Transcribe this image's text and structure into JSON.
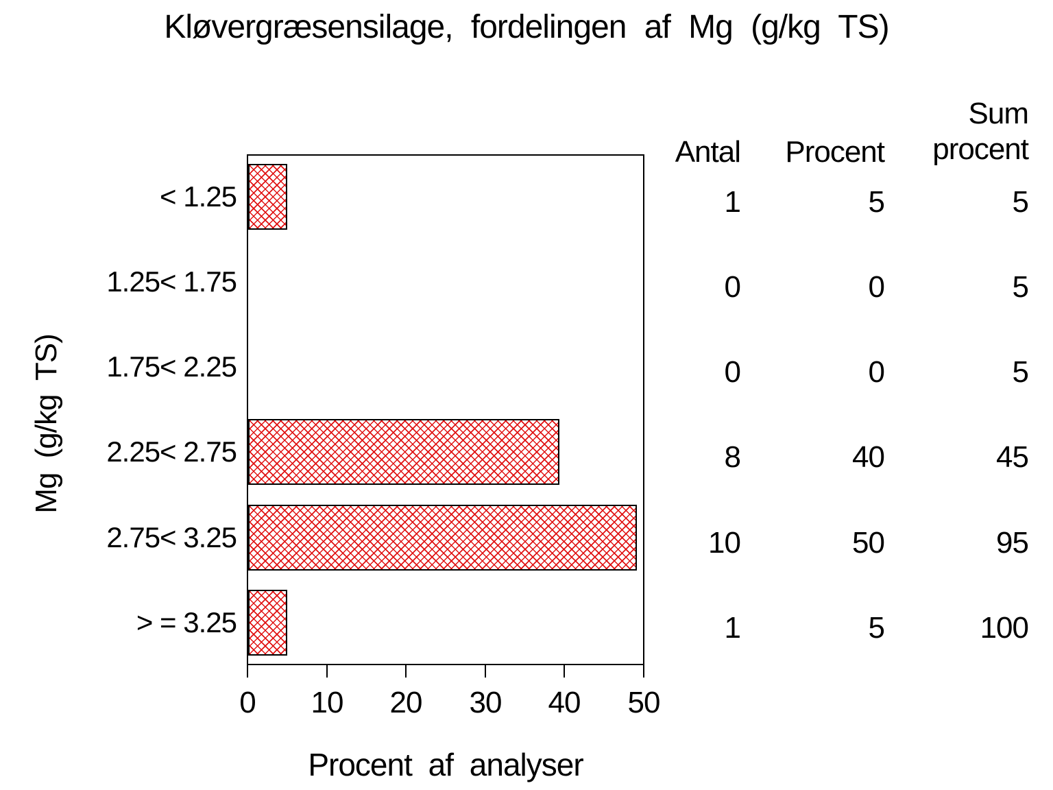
{
  "title": "Kløvergræsensilage, fordelingen af Mg (g/kg TS)",
  "y_axis_label": "Mg (g/kg TS)",
  "x_axis_label": "Procent af analyser",
  "columns": {
    "antal": "Antal",
    "procent": "Procent",
    "sum_line1": "Sum",
    "sum_line2": "procent"
  },
  "x_ticks": [
    "0",
    "10",
    "20",
    "30",
    "40",
    "50"
  ],
  "rows": [
    {
      "label": "< 1.25",
      "antal": "1",
      "procent": "5",
      "sum": "5"
    },
    {
      "label": "1.25< 1.75",
      "antal": "0",
      "procent": "0",
      "sum": "5"
    },
    {
      "label": "1.75< 2.25",
      "antal": "0",
      "procent": "0",
      "sum": "5"
    },
    {
      "label": "2.25< 2.75",
      "antal": "8",
      "procent": "40",
      "sum": "45"
    },
    {
      "label": "2.75< 3.25",
      "antal": "10",
      "procent": "50",
      "sum": "95"
    },
    {
      "label": "> = 3.25",
      "antal": "1",
      "procent": "5",
      "sum": "100"
    }
  ],
  "chart_data": {
    "type": "bar",
    "orientation": "horizontal",
    "title": "Kløvergræsensilage, fordelingen af Mg (g/kg TS)",
    "xlabel": "Procent af analyser",
    "ylabel": "Mg (g/kg TS)",
    "categories": [
      "< 1.25",
      "1.25< 1.75",
      "1.75< 2.25",
      "2.25< 2.75",
      "2.75< 3.25",
      "> = 3.25"
    ],
    "series": [
      {
        "name": "Procent",
        "values": [
          5,
          0,
          0,
          40,
          50,
          5
        ]
      },
      {
        "name": "Antal",
        "values": [
          1,
          0,
          0,
          8,
          10,
          1
        ]
      },
      {
        "name": "Sum procent",
        "values": [
          5,
          5,
          5,
          45,
          95,
          100
        ]
      }
    ],
    "xlim": [
      0,
      50
    ],
    "x_tick_values": [
      0,
      10,
      20,
      30,
      40,
      50
    ],
    "grid": false,
    "legend": false,
    "bar_style": "white fill with red diagonal crosshatch, black outline"
  },
  "colors": {
    "background": "#ffffff",
    "text": "#000000",
    "frame": "#000000",
    "hatch_red": "#e01212"
  }
}
